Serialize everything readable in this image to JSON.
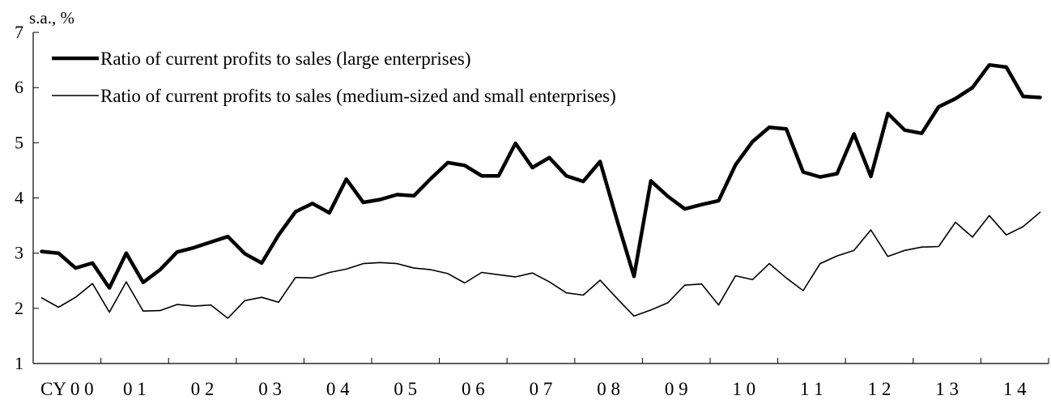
{
  "chart_data": {
    "type": "line",
    "unit_label": "s.a., %",
    "y_range": [
      1,
      7
    ],
    "y_ticks": [
      "1",
      "2",
      "3",
      "4",
      "5",
      "6",
      "7"
    ],
    "x_range": [
      2000.0,
      2015.0
    ],
    "x_tick_labels": [
      "CY 0 0",
      "0 1",
      "0 2",
      "0 3",
      "0 4",
      "0 5",
      "0 6",
      "0 7",
      "0 8",
      "0 9",
      "1 0",
      "1 1",
      "1 2",
      "1 3",
      "1 4"
    ],
    "x": [
      2000.0,
      2000.25,
      2000.5,
      2000.75,
      2001.0,
      2001.25,
      2001.5,
      2001.75,
      2002.0,
      2002.25,
      2002.5,
      2002.75,
      2003.0,
      2003.25,
      2003.5,
      2003.75,
      2004.0,
      2004.25,
      2004.5,
      2004.75,
      2005.0,
      2005.25,
      2005.5,
      2005.75,
      2006.0,
      2006.25,
      2006.5,
      2006.75,
      2007.0,
      2007.25,
      2007.5,
      2007.75,
      2008.0,
      2008.25,
      2008.5,
      2008.75,
      2009.0,
      2009.25,
      2009.5,
      2009.75,
      2010.0,
      2010.25,
      2010.5,
      2010.75,
      2011.0,
      2011.25,
      2011.5,
      2011.75,
      2012.0,
      2012.25,
      2012.5,
      2012.75,
      2013.0,
      2013.25,
      2013.5,
      2013.75,
      2014.0,
      2014.25,
      2014.5,
      2014.75
    ],
    "legend_position": "top-left",
    "series": [
      {
        "name": "Ratio of current profits to sales (large enterprises)",
        "color": "#000000",
        "line_width": "thick",
        "values": [
          3.03,
          3.0,
          2.73,
          2.82,
          2.37,
          3.0,
          2.47,
          2.7,
          3.02,
          3.1,
          3.2,
          3.3,
          2.99,
          2.82,
          3.33,
          3.75,
          3.9,
          3.73,
          4.34,
          3.92,
          3.97,
          4.06,
          4.04,
          4.35,
          4.64,
          4.59,
          4.4,
          4.4,
          4.99,
          4.55,
          4.73,
          4.4,
          4.3,
          4.66,
          3.6,
          2.58,
          4.31,
          4.03,
          3.8,
          3.88,
          3.95,
          4.6,
          5.02,
          5.28,
          5.25,
          4.47,
          4.38,
          4.44,
          5.16,
          4.39,
          5.53,
          5.23,
          5.17,
          5.65,
          5.8,
          6.0,
          6.41,
          6.37,
          5.84,
          5.82
        ]
      },
      {
        "name": "Ratio of current profits to sales (medium-sized and small enterprises)",
        "color": "#000000",
        "line_width": "thin",
        "values": [
          2.19,
          2.02,
          2.2,
          2.45,
          1.93,
          2.48,
          1.95,
          1.96,
          2.07,
          2.04,
          2.06,
          1.82,
          2.14,
          2.2,
          2.11,
          2.56,
          2.55,
          2.65,
          2.71,
          2.81,
          2.83,
          2.81,
          2.73,
          2.7,
          2.63,
          2.46,
          2.65,
          2.61,
          2.57,
          2.64,
          2.48,
          2.28,
          2.24,
          2.51,
          2.18,
          1.86,
          1.97,
          2.1,
          2.42,
          2.44,
          2.06,
          2.59,
          2.52,
          2.81,
          2.55,
          2.32,
          2.81,
          2.95,
          3.05,
          3.42,
          2.94,
          3.05,
          3.11,
          3.12,
          3.56,
          3.29,
          3.68,
          3.33,
          3.48,
          3.74
        ]
      }
    ]
  }
}
